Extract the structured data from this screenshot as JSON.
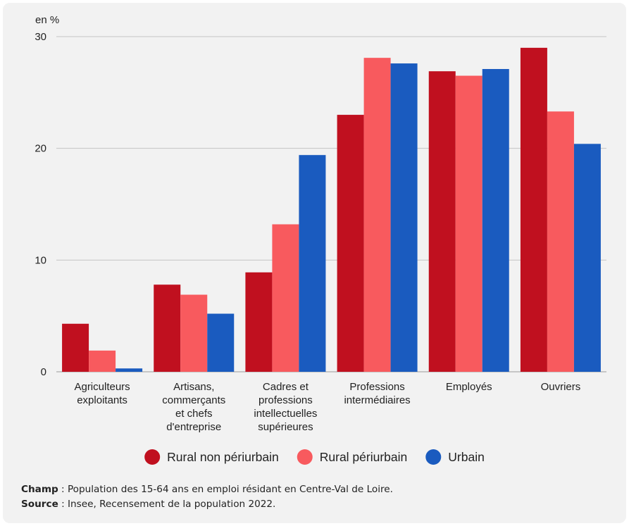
{
  "chart_data": {
    "type": "bar",
    "unit_label": "en %",
    "categories": [
      [
        "Agriculteurs",
        "exploitants"
      ],
      [
        "Artisans,",
        "commerçants",
        "et chefs",
        "d'entreprise"
      ],
      [
        "Cadres et",
        "professions",
        "intellectuelles",
        "supérieures"
      ],
      [
        "Professions",
        "intermédiaires"
      ],
      [
        "Employés"
      ],
      [
        "Ouvriers"
      ]
    ],
    "series": [
      {
        "name": "Rural non périurbain",
        "color": "#c0101f",
        "values": [
          4.3,
          7.8,
          8.9,
          23.0,
          26.9,
          29.0
        ]
      },
      {
        "name": "Rural périurbain",
        "color": "#f85a5e",
        "values": [
          1.9,
          6.9,
          13.2,
          28.1,
          26.5,
          23.3
        ]
      },
      {
        "name": "Urbain",
        "color": "#1a5bbf",
        "values": [
          0.3,
          5.2,
          19.4,
          27.6,
          27.1,
          20.4
        ]
      }
    ],
    "ylim": [
      0,
      30
    ],
    "yticks": [
      0,
      10,
      20,
      30
    ],
    "grid": true,
    "legend_position": "bottom"
  },
  "notes": {
    "champ_label": "Champ",
    "champ_text": " : Population des 15-64 ans en emploi résidant en Centre-Val de Loire.",
    "source_label": "Source",
    "source_text": " : Insee, Recensement de la population 2022."
  }
}
